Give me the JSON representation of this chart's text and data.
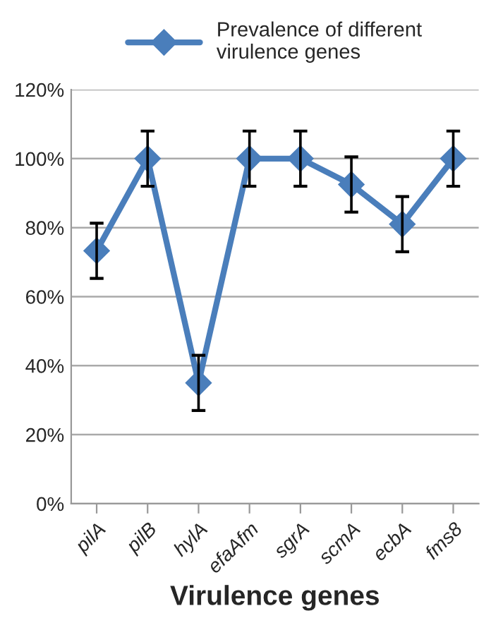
{
  "chart_data": {
    "type": "line",
    "xlabel": "Virulence genes",
    "categories": [
      "pilA",
      "pilB",
      "hylA",
      "efaAfm",
      "sgrA",
      "scmA",
      "ecbA",
      "fms8"
    ],
    "series": [
      {
        "name": "Prevalence of different\nvirulence genes",
        "color": "#4a7ebb",
        "values": [
          73.3,
          100,
          35,
          100,
          100,
          92.5,
          81,
          100
        ],
        "errors": [
          8,
          8,
          8,
          8,
          8,
          8,
          8,
          8
        ]
      }
    ],
    "ylim": [
      0,
      120
    ],
    "yticks": [
      {
        "value": 0,
        "label": "0%"
      },
      {
        "value": 20,
        "label": "20%"
      },
      {
        "value": 40,
        "label": "40%"
      },
      {
        "value": 60,
        "label": "60%"
      },
      {
        "value": 80,
        "label": "80%"
      },
      {
        "value": 100,
        "label": "100%"
      },
      {
        "value": 120,
        "label": "120%"
      }
    ],
    "grid": "y",
    "legend": "top",
    "marker": "diamond",
    "line_style": "solid"
  }
}
